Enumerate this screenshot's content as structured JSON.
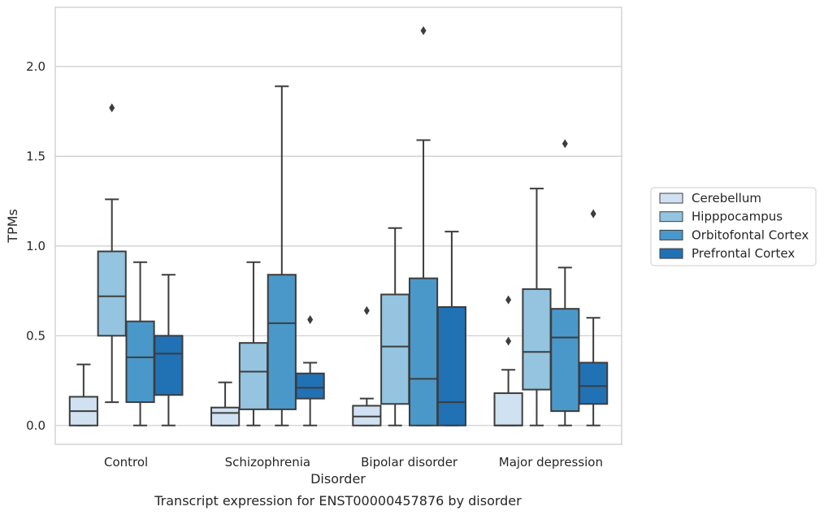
{
  "chart_data": {
    "type": "box",
    "xlabel": "Disorder",
    "ylabel": "TPMs",
    "caption": "Transcript expression for ENST00000457876 by disorder",
    "ylim": [
      -0.105,
      2.33
    ],
    "yticks": [
      0.0,
      0.5,
      1.0,
      1.5,
      2.0
    ],
    "ytick_labels": [
      "0.0",
      "0.5",
      "1.0",
      "1.5",
      "2.0"
    ],
    "grid": "horizontal",
    "legend_position": "right",
    "categories": [
      "Control",
      "Schizophrenia",
      "Bipolar disorder",
      "Major depression"
    ],
    "series": [
      {
        "name": "Cerebellum",
        "color": "#d0e1f2",
        "boxes": [
          {
            "q1": 0.0,
            "median": 0.08,
            "q3": 0.16,
            "whisker_low": 0.0,
            "whisker_high": 0.34,
            "outliers": []
          },
          {
            "q1": 0.0,
            "median": 0.07,
            "q3": 0.1,
            "whisker_low": 0.0,
            "whisker_high": 0.24,
            "outliers": []
          },
          {
            "q1": 0.0,
            "median": 0.05,
            "q3": 0.11,
            "whisker_low": 0.0,
            "whisker_high": 0.15,
            "outliers": [
              0.64
            ]
          },
          {
            "q1": 0.0,
            "median": 0.0,
            "q3": 0.18,
            "whisker_low": 0.0,
            "whisker_high": 0.31,
            "outliers": [
              0.47,
              0.7
            ]
          }
        ]
      },
      {
        "name": "Hipppocampus",
        "color": "#94c4df",
        "boxes": [
          {
            "q1": 0.5,
            "median": 0.72,
            "q3": 0.97,
            "whisker_low": 0.13,
            "whisker_high": 1.26,
            "outliers": [
              1.77
            ]
          },
          {
            "q1": 0.09,
            "median": 0.3,
            "q3": 0.46,
            "whisker_low": 0.0,
            "whisker_high": 0.91,
            "outliers": []
          },
          {
            "q1": 0.12,
            "median": 0.44,
            "q3": 0.73,
            "whisker_low": 0.0,
            "whisker_high": 1.1,
            "outliers": []
          },
          {
            "q1": 0.2,
            "median": 0.41,
            "q3": 0.76,
            "whisker_low": 0.0,
            "whisker_high": 1.32,
            "outliers": []
          }
        ]
      },
      {
        "name": "Orbitofontal Cortex",
        "color": "#4a98c9",
        "boxes": [
          {
            "q1": 0.13,
            "median": 0.38,
            "q3": 0.58,
            "whisker_low": 0.0,
            "whisker_high": 0.91,
            "outliers": []
          },
          {
            "q1": 0.09,
            "median": 0.57,
            "q3": 0.84,
            "whisker_low": 0.0,
            "whisker_high": 1.89,
            "outliers": []
          },
          {
            "q1": 0.0,
            "median": 0.26,
            "q3": 0.82,
            "whisker_low": 0.0,
            "whisker_high": 1.59,
            "outliers": [
              2.2
            ]
          },
          {
            "q1": 0.08,
            "median": 0.49,
            "q3": 0.65,
            "whisker_low": 0.0,
            "whisker_high": 0.88,
            "outliers": [
              1.57
            ]
          }
        ]
      },
      {
        "name": "Prefrontal Cortex",
        "color": "#2171b5",
        "boxes": [
          {
            "q1": 0.17,
            "median": 0.4,
            "q3": 0.5,
            "whisker_low": 0.0,
            "whisker_high": 0.84,
            "outliers": []
          },
          {
            "q1": 0.15,
            "median": 0.21,
            "q3": 0.29,
            "whisker_low": 0.0,
            "whisker_high": 0.35,
            "outliers": [
              0.59
            ]
          },
          {
            "q1": 0.0,
            "median": 0.13,
            "q3": 0.66,
            "whisker_low": 0.0,
            "whisker_high": 1.08,
            "outliers": []
          },
          {
            "q1": 0.12,
            "median": 0.22,
            "q3": 0.35,
            "whisker_low": 0.0,
            "whisker_high": 0.6,
            "outliers": [
              1.18
            ]
          }
        ]
      }
    ]
  }
}
